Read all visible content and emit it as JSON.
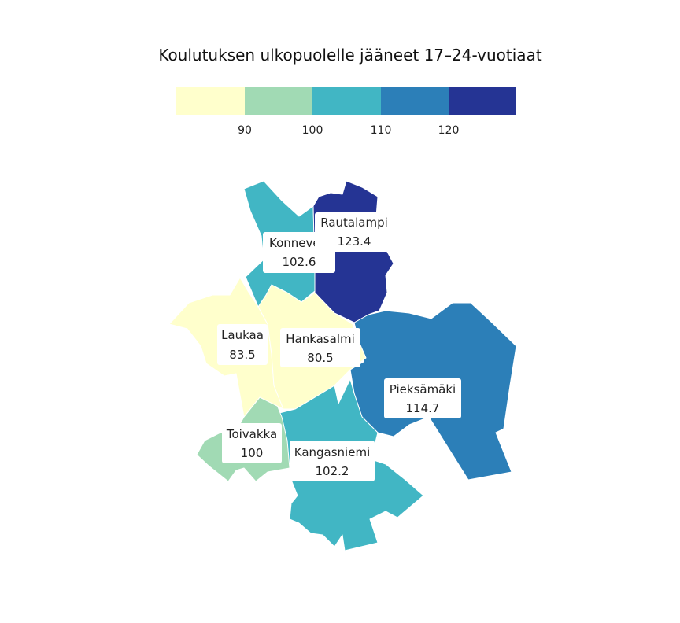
{
  "title": "Koulutuksen ulkopuolelle jääneet 17–24-vuotiaat",
  "legend": {
    "colors": [
      "#ffffcc",
      "#a1dab4",
      "#41b6c4",
      "#2c7fb8",
      "#253494"
    ],
    "ticks": [
      "90",
      "100",
      "110",
      "120"
    ]
  },
  "regions": [
    {
      "name": "Konnevesi",
      "value": "102.6",
      "color": "#41b6c4"
    },
    {
      "name": "Rautalampi",
      "value": "123.4",
      "color": "#253494"
    },
    {
      "name": "Laukaa",
      "value": "83.5",
      "color": "#ffffcc"
    },
    {
      "name": "Hankasalmi",
      "value": "80.5",
      "color": "#ffffcc"
    },
    {
      "name": "Pieksämäki",
      "value": "114.7",
      "color": "#2c7fb8"
    },
    {
      "name": "Toivakka",
      "value": "100",
      "color": "#a1dab4"
    },
    {
      "name": "Kangasniemi",
      "value": "102.2",
      "color": "#41b6c4"
    }
  ]
}
